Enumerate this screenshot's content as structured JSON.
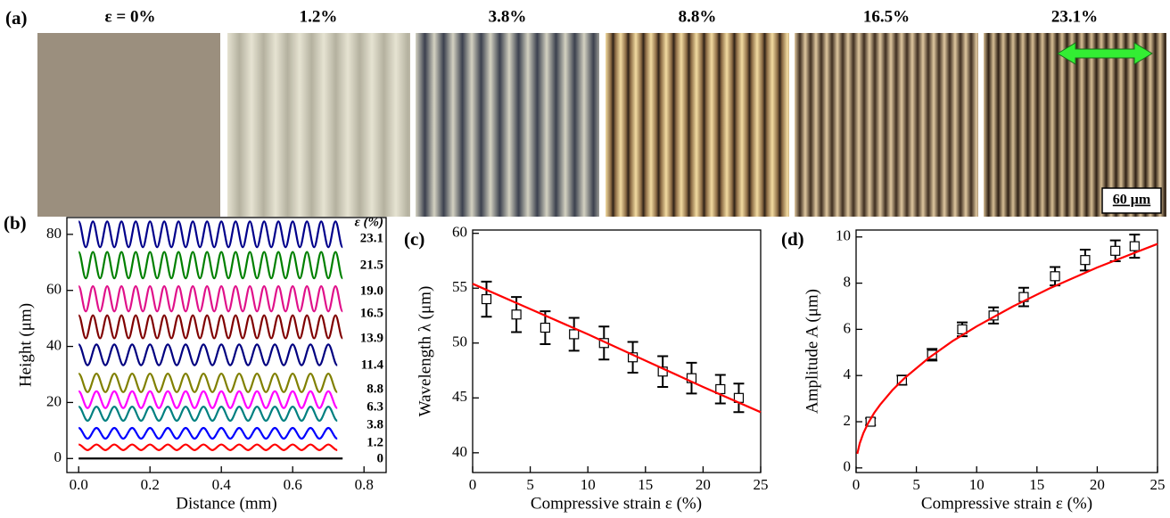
{
  "micrographs": {
    "panel_label": "(a)",
    "strain_labels": [
      "ε = 0%",
      "1.2%",
      "3.8%",
      "8.8%",
      "16.5%",
      "23.1%"
    ],
    "scale_bar": "60 μm"
  },
  "chart_data": [
    {
      "type": "line",
      "panel_label": "(b)",
      "x_label": "Distance (mm)",
      "y_label": "Height (μm)",
      "legend_title": "ε (%)",
      "smooth": true,
      "xlim": [
        -0.033,
        0.862
      ],
      "ylim": [
        -5,
        86
      ],
      "xticks": [
        {
          "value": 0,
          "label": "0.0"
        },
        {
          "value": 0.2,
          "label": "0.2"
        },
        {
          "value": 0.4,
          "label": "0.4"
        },
        {
          "value": 0.6,
          "label": "0.6"
        },
        {
          "value": 0.8,
          "label": "0.8"
        }
      ],
      "yticks": [
        0,
        20,
        40,
        60,
        80
      ],
      "series": [
        {
          "name": "0",
          "color": "#000000",
          "mode": "line",
          "x": [
            0,
            0.74
          ],
          "values": [
            0,
            0
          ]
        },
        {
          "name": "1.2",
          "color": "#ff0000",
          "mode": "line",
          "x": [
            0,
            0.025,
            0.05,
            0.075,
            0.1,
            0.125,
            0.15,
            0.175,
            0.2,
            0.225,
            0.25,
            0.275,
            0.3,
            0.325,
            0.35,
            0.375,
            0.4,
            0.425,
            0.45,
            0.475,
            0.5,
            0.525,
            0.55,
            0.575,
            0.6,
            0.625,
            0.65,
            0.675,
            0.7,
            0.725
          ],
          "values": [
            5,
            3,
            5,
            3,
            5,
            3,
            5,
            3,
            5,
            3,
            5,
            3,
            5,
            3,
            5,
            3,
            5,
            3,
            5,
            3,
            5,
            3,
            5,
            3,
            5,
            3,
            5,
            3,
            5,
            3
          ]
        },
        {
          "name": "3.8",
          "color": "#0000ff",
          "mode": "line",
          "x": [
            0,
            0.025,
            0.05,
            0.075,
            0.1,
            0.125,
            0.15,
            0.175,
            0.2,
            0.225,
            0.25,
            0.275,
            0.3,
            0.325,
            0.35,
            0.375,
            0.4,
            0.425,
            0.45,
            0.475,
            0.5,
            0.525,
            0.55,
            0.575,
            0.6,
            0.625,
            0.65,
            0.675,
            0.7,
            0.725
          ],
          "values": [
            10.9,
            7.1,
            10.9,
            7.1,
            10.9,
            7.1,
            10.9,
            7.1,
            10.9,
            7.1,
            10.9,
            7.1,
            10.9,
            7.1,
            10.9,
            7.1,
            10.9,
            7.1,
            10.9,
            7.1,
            10.9,
            7.1,
            10.9,
            7.1,
            10.9,
            7.1,
            10.9,
            7.1,
            10.9,
            7.1
          ]
        },
        {
          "name": "6.3",
          "color": "#008080",
          "mode": "line",
          "x": [
            0,
            0.025,
            0.05,
            0.075,
            0.1,
            0.125,
            0.15,
            0.175,
            0.2,
            0.225,
            0.25,
            0.275,
            0.3,
            0.325,
            0.35,
            0.375,
            0.4,
            0.425,
            0.45,
            0.475,
            0.5,
            0.525,
            0.55,
            0.575,
            0.6,
            0.625,
            0.65,
            0.675,
            0.7,
            0.725
          ],
          "values": [
            18.5,
            13.5,
            18.5,
            13.5,
            18.5,
            13.5,
            18.5,
            13.5,
            18.5,
            13.5,
            18.5,
            13.5,
            18.5,
            13.5,
            18.5,
            13.5,
            18.5,
            13.5,
            18.5,
            13.5,
            18.5,
            13.5,
            18.5,
            13.5,
            18.5,
            13.5,
            18.5,
            13.5,
            18.5,
            13.5
          ]
        },
        {
          "name": "8.8",
          "color": "#ff00ff",
          "mode": "line",
          "x": [
            0,
            0.025,
            0.05,
            0.075,
            0.1,
            0.125,
            0.15,
            0.175,
            0.2,
            0.225,
            0.25,
            0.275,
            0.3,
            0.325,
            0.35,
            0.375,
            0.4,
            0.425,
            0.45,
            0.475,
            0.5,
            0.525,
            0.55,
            0.575,
            0.6,
            0.625,
            0.65,
            0.675,
            0.7,
            0.725
          ],
          "values": [
            24,
            18,
            24,
            18,
            24,
            18,
            24,
            18,
            24,
            18,
            24,
            18,
            24,
            18,
            24,
            18,
            24,
            18,
            24,
            18,
            24,
            18,
            24,
            18,
            24,
            18,
            24,
            18,
            24,
            18
          ]
        },
        {
          "name": "11.4",
          "color": "#808000",
          "mode": "line",
          "x": [
            0,
            0.025,
            0.05,
            0.075,
            0.1,
            0.125,
            0.15,
            0.175,
            0.2,
            0.225,
            0.25,
            0.275,
            0.3,
            0.325,
            0.35,
            0.375,
            0.4,
            0.425,
            0.45,
            0.475,
            0.5,
            0.525,
            0.55,
            0.575,
            0.6,
            0.625,
            0.65,
            0.675,
            0.7,
            0.725
          ],
          "values": [
            30.3,
            23.7,
            30.3,
            23.7,
            30.3,
            23.7,
            30.3,
            23.7,
            30.3,
            23.7,
            30.3,
            23.7,
            30.3,
            23.7,
            30.3,
            23.7,
            30.3,
            23.7,
            30.3,
            23.7,
            30.3,
            23.7,
            30.3,
            23.7,
            30.3,
            23.7,
            30.3,
            23.7,
            30.3,
            23.7
          ]
        },
        {
          "name": "13.9",
          "color": "#000080",
          "mode": "line",
          "x": [
            0,
            0.025,
            0.05,
            0.075,
            0.1,
            0.125,
            0.15,
            0.175,
            0.2,
            0.225,
            0.25,
            0.275,
            0.3,
            0.325,
            0.35,
            0.375,
            0.4,
            0.425,
            0.45,
            0.475,
            0.5,
            0.525,
            0.55,
            0.575,
            0.6,
            0.625,
            0.65,
            0.675,
            0.7,
            0.725
          ],
          "values": [
            40.7,
            33.3,
            40.7,
            33.3,
            40.7,
            33.3,
            40.7,
            33.3,
            40.7,
            33.3,
            40.7,
            33.3,
            40.7,
            33.3,
            40.7,
            33.3,
            40.7,
            33.3,
            40.7,
            33.3,
            40.7,
            33.3,
            40.7,
            33.3,
            40.7,
            33.3,
            40.7,
            33.3,
            40.7,
            33.3
          ]
        },
        {
          "name": "16.5",
          "color": "#800000",
          "mode": "line",
          "x": [
            0,
            0.02,
            0.04,
            0.06,
            0.08,
            0.1,
            0.12,
            0.14,
            0.16,
            0.18,
            0.2,
            0.22,
            0.24,
            0.26,
            0.28,
            0.3,
            0.32,
            0.34,
            0.36,
            0.38,
            0.4,
            0.42,
            0.44,
            0.46,
            0.48,
            0.5,
            0.52,
            0.54,
            0.56,
            0.58,
            0.6,
            0.62,
            0.64,
            0.66,
            0.68,
            0.7,
            0.72,
            0.74
          ],
          "values": [
            51.1,
            42.9,
            51.1,
            42.9,
            51.1,
            42.9,
            51.1,
            42.9,
            51.1,
            42.9,
            51.1,
            42.9,
            51.1,
            42.9,
            51.1,
            42.9,
            51.1,
            42.9,
            51.1,
            42.9,
            51.1,
            42.9,
            51.1,
            42.9,
            51.1,
            42.9,
            51.1,
            42.9,
            51.1,
            42.9,
            51.1,
            42.9,
            51.1,
            42.9,
            51.1,
            42.9,
            51.1,
            42.9
          ]
        },
        {
          "name": "19.0",
          "color": "#e0108a",
          "mode": "line",
          "x": [
            0,
            0.02,
            0.04,
            0.06,
            0.08,
            0.1,
            0.12,
            0.14,
            0.16,
            0.18,
            0.2,
            0.22,
            0.24,
            0.26,
            0.28,
            0.3,
            0.32,
            0.34,
            0.36,
            0.38,
            0.4,
            0.42,
            0.44,
            0.46,
            0.48,
            0.5,
            0.52,
            0.54,
            0.56,
            0.58,
            0.6,
            0.62,
            0.64,
            0.66,
            0.68,
            0.7,
            0.72,
            0.74
          ],
          "values": [
            61.5,
            52.5,
            61.5,
            52.5,
            61.5,
            52.5,
            61.5,
            52.5,
            61.5,
            52.5,
            61.5,
            52.5,
            61.5,
            52.5,
            61.5,
            52.5,
            61.5,
            52.5,
            61.5,
            52.5,
            61.5,
            52.5,
            61.5,
            52.5,
            61.5,
            52.5,
            61.5,
            52.5,
            61.5,
            52.5,
            61.5,
            52.5,
            61.5,
            52.5,
            61.5,
            52.5,
            61.5,
            52.5
          ]
        },
        {
          "name": "21.5",
          "color": "#008000",
          "mode": "line",
          "x": [
            0,
            0.02,
            0.04,
            0.06,
            0.08,
            0.1,
            0.12,
            0.14,
            0.16,
            0.18,
            0.2,
            0.22,
            0.24,
            0.26,
            0.28,
            0.3,
            0.32,
            0.34,
            0.36,
            0.38,
            0.4,
            0.42,
            0.44,
            0.46,
            0.48,
            0.5,
            0.52,
            0.54,
            0.56,
            0.58,
            0.6,
            0.62,
            0.64,
            0.66,
            0.68,
            0.7,
            0.72,
            0.74
          ],
          "values": [
            73.7,
            64.3,
            73.7,
            64.3,
            73.7,
            64.3,
            73.7,
            64.3,
            73.7,
            64.3,
            73.7,
            64.3,
            73.7,
            64.3,
            73.7,
            64.3,
            73.7,
            64.3,
            73.7,
            64.3,
            73.7,
            64.3,
            73.7,
            64.3,
            73.7,
            64.3,
            73.7,
            64.3,
            73.7,
            64.3,
            73.7,
            64.3,
            73.7,
            64.3,
            73.7,
            64.3,
            73.7,
            64.3
          ]
        },
        {
          "name": "23.1",
          "color": "#00008b",
          "mode": "line",
          "x": [
            0,
            0.02,
            0.04,
            0.06,
            0.08,
            0.1,
            0.12,
            0.14,
            0.16,
            0.18,
            0.2,
            0.22,
            0.24,
            0.26,
            0.28,
            0.3,
            0.32,
            0.34,
            0.36,
            0.38,
            0.4,
            0.42,
            0.44,
            0.46,
            0.48,
            0.5,
            0.52,
            0.54,
            0.56,
            0.58,
            0.6,
            0.62,
            0.64,
            0.66,
            0.68,
            0.7,
            0.72,
            0.74
          ],
          "values": [
            84.6,
            75.4,
            84.6,
            75.4,
            84.6,
            75.4,
            84.6,
            75.4,
            84.6,
            75.4,
            84.6,
            75.4,
            84.6,
            75.4,
            84.6,
            75.4,
            84.6,
            75.4,
            84.6,
            75.4,
            84.6,
            75.4,
            84.6,
            75.4,
            84.6,
            75.4,
            84.6,
            75.4,
            84.6,
            75.4,
            84.6,
            75.4,
            84.6,
            75.4,
            84.6,
            75.4,
            84.6,
            75.4
          ]
        }
      ]
    },
    {
      "type": "scatter",
      "panel_label": "(c)",
      "x_label": "Compressive strain ε (%)",
      "y_label": "Wavelength λ (μm)",
      "xlim": [
        0,
        25
      ],
      "ylim": [
        38.2,
        60.3
      ],
      "xticks": [
        0,
        5,
        10,
        15,
        20,
        25
      ],
      "yticks": [
        40,
        45,
        50,
        55,
        60
      ],
      "series": [
        {
          "mode": "markers",
          "color": "#000000",
          "x": [
            1.2,
            3.8,
            6.3,
            8.8,
            11.4,
            13.9,
            16.5,
            19.0,
            21.5,
            23.1
          ],
          "values": [
            54,
            52.6,
            51.4,
            50.8,
            50,
            48.7,
            47.4,
            46.8,
            45.8,
            45
          ],
          "errors": [
            1.6,
            1.6,
            1.5,
            1.5,
            1.5,
            1.4,
            1.4,
            1.4,
            1.3,
            1.3
          ]
        },
        {
          "mode": "line",
          "color": "#ff0000",
          "x": [
            0,
            5,
            10,
            15,
            20,
            25
          ],
          "values": [
            55.4,
            53.1,
            50.8,
            48.4,
            46.0,
            43.7
          ]
        }
      ]
    },
    {
      "type": "scatter",
      "panel_label": "(d)",
      "x_label": "Compressive strain ε (%)",
      "y_label": "Amplitude A (μm)",
      "xlim": [
        0,
        25
      ],
      "ylim": [
        -0.2,
        10.3
      ],
      "xticks": [
        0,
        5,
        10,
        15,
        20,
        25
      ],
      "yticks": [
        0,
        2,
        4,
        6,
        8,
        10
      ],
      "series": [
        {
          "mode": "markers",
          "color": "#000000",
          "x": [
            1.2,
            3.8,
            6.3,
            8.8,
            11.4,
            13.9,
            16.5,
            19.0,
            21.5,
            23.1
          ],
          "values": [
            2.0,
            3.8,
            4.9,
            6.0,
            6.6,
            7.4,
            8.3,
            9.0,
            9.4,
            9.6
          ],
          "errors": [
            0.15,
            0.2,
            0.25,
            0.3,
            0.35,
            0.4,
            0.4,
            0.45,
            0.45,
            0.5
          ]
        },
        {
          "mode": "line",
          "color": "#ff0000",
          "x": [
            0.1,
            0.3,
            0.6,
            1,
            1.5,
            2,
            3,
            4,
            6,
            8,
            10,
            13,
            16,
            20,
            25
          ],
          "values": [
            0.61,
            1.06,
            1.5,
            1.94,
            2.38,
            2.74,
            3.36,
            3.88,
            4.75,
            5.49,
            6.13,
            6.99,
            7.76,
            8.68,
            9.7
          ]
        }
      ]
    }
  ]
}
